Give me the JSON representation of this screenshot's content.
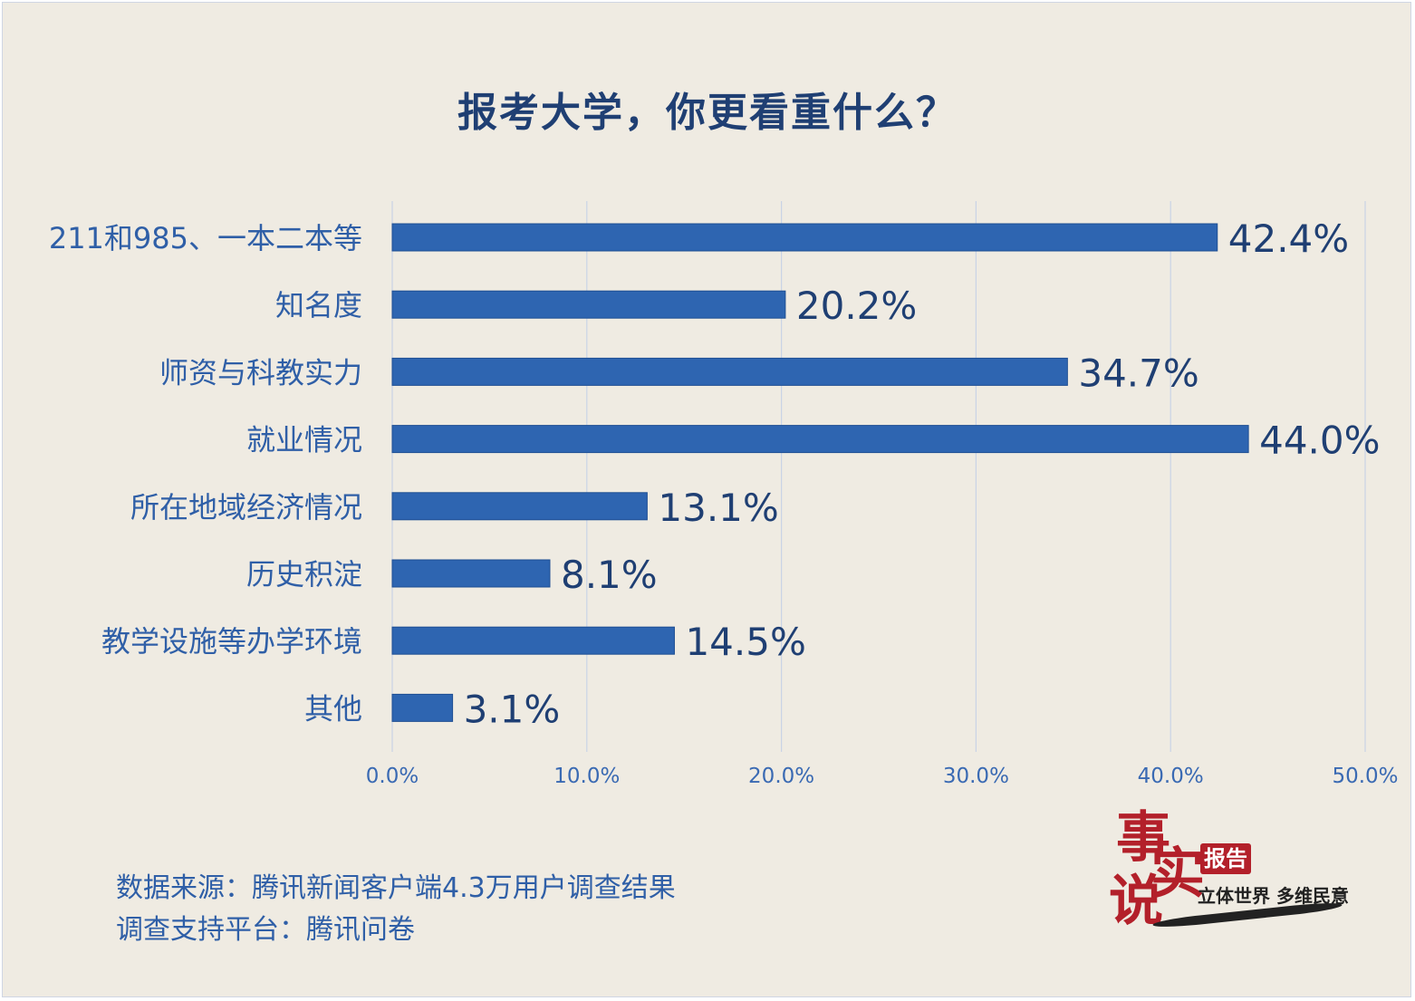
{
  "title": "报考大学，你更看重什么？",
  "chart_data": {
    "type": "bar",
    "orientation": "horizontal",
    "categories": [
      "211和985、一本二本等",
      "知名度",
      "师资与科教实力",
      "就业情况",
      "所在地域经济情况",
      "历史积淀",
      "教学设施等办学环境",
      "其他"
    ],
    "values": [
      42.4,
      20.2,
      34.7,
      44.0,
      13.1,
      8.1,
      14.5,
      3.1
    ],
    "value_labels": [
      "42.4%",
      "20.2%",
      "34.7%",
      "44.0%",
      "13.1%",
      "8.1%",
      "14.5%",
      "3.1%"
    ],
    "xlim": [
      0,
      50
    ],
    "xticks": [
      "0.0%",
      "10.0%",
      "20.0%",
      "30.0%",
      "40.0%",
      "50.0%"
    ],
    "grid": true,
    "bar_color": "#2e65b1"
  },
  "source": {
    "line1": "数据来源：腾讯新闻客户端4.3万用户调查结果",
    "line2": "调查支持平台：腾讯问卷"
  },
  "logo": {
    "char1": "事",
    "char2": "实",
    "char3": "说",
    "badge": "报告",
    "slogan": "立体世界 多维民意"
  }
}
